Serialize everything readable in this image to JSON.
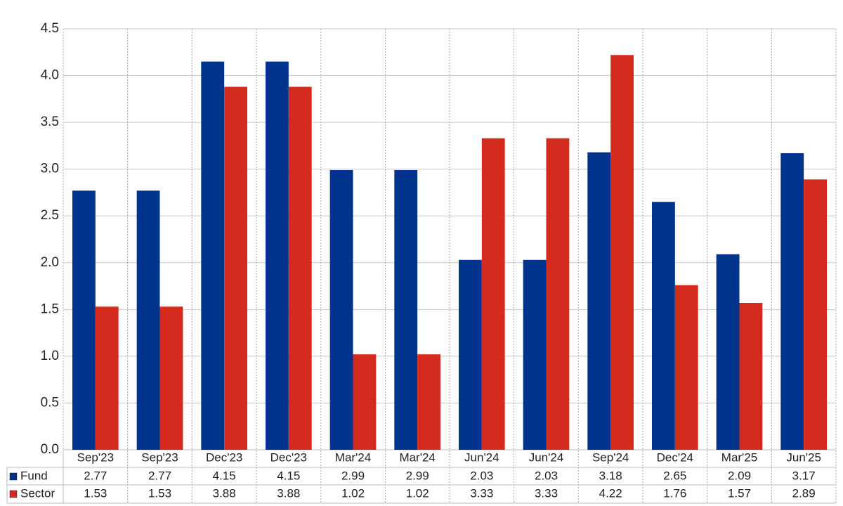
{
  "chart_data": {
    "type": "bar",
    "categories": [
      "Sep'23",
      "Sep'23",
      "Dec'23",
      "Dec'23",
      "Mar'24",
      "Mar'24",
      "Jun'24",
      "Jun'24",
      "Sep'24",
      "Dec'24",
      "Mar'25",
      "Jun'25"
    ],
    "series": [
      {
        "name": "Fund",
        "color": "#00338d",
        "values": [
          2.77,
          2.77,
          4.15,
          4.15,
          2.99,
          2.99,
          2.03,
          2.03,
          3.18,
          2.65,
          2.09,
          3.17
        ]
      },
      {
        "name": "Sector",
        "color": "#d52b1e",
        "values": [
          1.53,
          1.53,
          3.88,
          3.88,
          1.02,
          1.02,
          3.33,
          3.33,
          4.22,
          1.76,
          1.57,
          2.89
        ]
      }
    ],
    "ylim": [
      0,
      4.5
    ],
    "yticks": [
      {
        "value": 0,
        "label": "0.0"
      },
      0.5,
      {
        "value": 1,
        "label": "1.0"
      },
      1.5,
      {
        "value": 2,
        "label": "2.0"
      },
      2.5,
      {
        "value": 3,
        "label": "3.0"
      },
      3.5,
      {
        "value": 4,
        "label": "4.0"
      },
      4.5
    ],
    "grid": true
  }
}
